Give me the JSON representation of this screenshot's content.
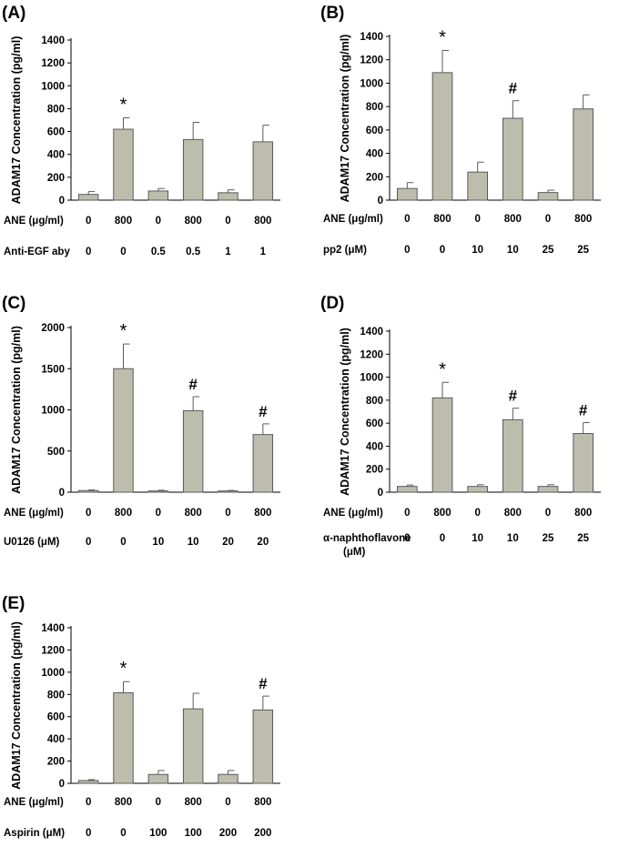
{
  "figure": {
    "ylabel": "ADAM17 Concentration (pg/ml)",
    "ane_label": "ANE (μg/ml)",
    "colors": {
      "bar_fill": "#bdbdad",
      "bar_stroke": "#5a5a5a",
      "axis": "#000000",
      "text": "#000000"
    }
  },
  "chart_data": [
    {
      "panel": "(A)",
      "type": "bar",
      "ylabel": "ADAM17 Concentration (pg/ml)",
      "ylim": [
        0,
        1400
      ],
      "yticks": [
        0,
        200,
        400,
        600,
        800,
        1000,
        1200,
        1400
      ],
      "values": [
        50,
        620,
        80,
        530,
        65,
        510
      ],
      "errors": [
        25,
        100,
        22,
        150,
        25,
        145
      ],
      "marks": [
        "",
        "*",
        "",
        "",
        "",
        ""
      ],
      "row1": {
        "label": "ANE (μg/ml)",
        "values": [
          "0",
          "800",
          "0",
          "800",
          "0",
          "800"
        ]
      },
      "row2": {
        "label": "Anti-EGF aby",
        "values": [
          "0",
          "0",
          "0.5",
          "0.5",
          "1",
          "1"
        ]
      }
    },
    {
      "panel": "(B)",
      "type": "bar",
      "ylabel": "ADAM17 Concentration (pg/ml)",
      "ylim": [
        0,
        1400
      ],
      "yticks": [
        0,
        200,
        400,
        600,
        800,
        1000,
        1200,
        1400
      ],
      "values": [
        100,
        1090,
        240,
        700,
        65,
        780
      ],
      "errors": [
        50,
        190,
        85,
        150,
        20,
        120
      ],
      "marks": [
        "",
        "*",
        "",
        "#",
        "",
        ""
      ],
      "row1": {
        "label": "ANE (μg/ml)",
        "values": [
          "0",
          "800",
          "0",
          "800",
          "0",
          "800"
        ]
      },
      "row2": {
        "label": "pp2 (μM)",
        "values": [
          "0",
          "0",
          "10",
          "10",
          "25",
          "25"
        ]
      }
    },
    {
      "panel": "(C)",
      "type": "bar",
      "ylabel": "ADAM17 Concentration (pg/ml)",
      "ylim": [
        0,
        2000
      ],
      "yticks": [
        0,
        500,
        1000,
        1500,
        2000
      ],
      "values": [
        20,
        1500,
        15,
        990,
        15,
        700
      ],
      "errors": [
        8,
        300,
        8,
        170,
        6,
        130
      ],
      "marks": [
        "",
        "*",
        "",
        "#",
        "",
        "#"
      ],
      "row1": {
        "label": "ANE (μg/ml)",
        "values": [
          "0",
          "800",
          "0",
          "800",
          "0",
          "800"
        ]
      },
      "row2": {
        "label": "U0126 (μM)",
        "values": [
          "0",
          "0",
          "10",
          "10",
          "20",
          "20"
        ]
      }
    },
    {
      "panel": "(D)",
      "type": "bar",
      "ylabel": "ADAM17 Concentration (pg/ml)",
      "ylim": [
        0,
        1400
      ],
      "yticks": [
        0,
        200,
        400,
        600,
        800,
        1000,
        1200,
        1400
      ],
      "values": [
        50,
        820,
        50,
        630,
        50,
        510
      ],
      "errors": [
        12,
        135,
        15,
        100,
        15,
        95
      ],
      "marks": [
        "",
        "*",
        "",
        "#",
        "",
        "#"
      ],
      "row1": {
        "label": "ANE (μg/ml)",
        "values": [
          "0",
          "800",
          "0",
          "800",
          "0",
          "800"
        ]
      },
      "row2": {
        "label": "α-naphthoflavone",
        "label2": "(μM)",
        "values": [
          "0",
          "0",
          "10",
          "10",
          "25",
          "25"
        ]
      }
    },
    {
      "panel": "(E)",
      "type": "bar",
      "ylabel": "ADAM17 Concentration (pg/ml)",
      "ylim": [
        0,
        1400
      ],
      "yticks": [
        0,
        200,
        400,
        600,
        800,
        1000,
        1200,
        1400
      ],
      "values": [
        25,
        815,
        80,
        670,
        80,
        660
      ],
      "errors": [
        8,
        100,
        35,
        140,
        35,
        125
      ],
      "marks": [
        "",
        "*",
        "",
        "",
        "",
        "#"
      ],
      "row1": {
        "label": "ANE (μg/ml)",
        "values": [
          "0",
          "800",
          "0",
          "800",
          "0",
          "800"
        ]
      },
      "row2": {
        "label": "Aspirin (μM)",
        "values": [
          "0",
          "0",
          "100",
          "100",
          "200",
          "200"
        ]
      }
    }
  ]
}
